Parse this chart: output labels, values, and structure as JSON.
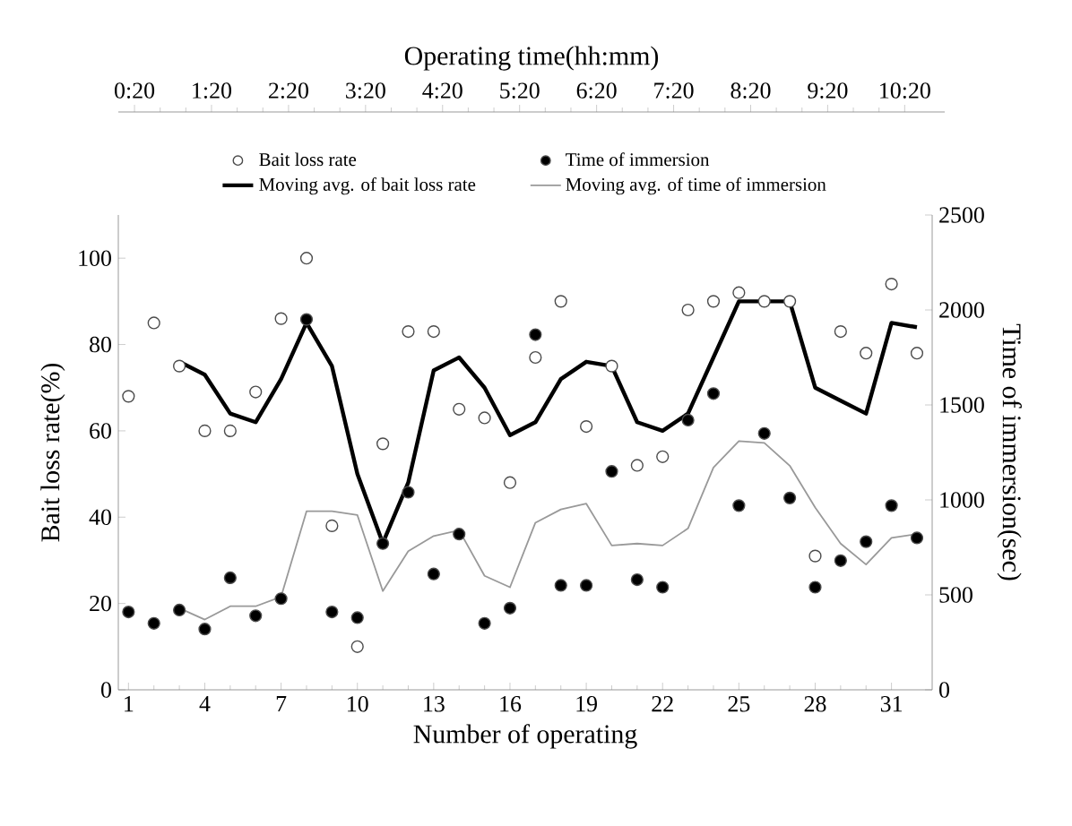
{
  "chart_data": {
    "type": "scatter",
    "x2label": "Operating time(hh:mm)",
    "xlabel": "Number of operating",
    "ylabel": "Bait loss rate(%)",
    "y2label": "Time of immersion(sec)",
    "xlim": [
      0.6,
      32.6
    ],
    "xticks": [
      1,
      4,
      7,
      10,
      13,
      16,
      19,
      22,
      25,
      28,
      31
    ],
    "ylim": [
      0,
      110
    ],
    "yticks": [
      0,
      20,
      40,
      60,
      80,
      100
    ],
    "y2lim": [
      0,
      2500
    ],
    "y2ticks": [
      0,
      500,
      1000,
      1500,
      2000,
      2500
    ],
    "x2lim": [
      0.12,
      10.85
    ],
    "x2ticks": [
      {
        "value": 0.33,
        "label": "0:20"
      },
      {
        "value": 1.33,
        "label": "1:20"
      },
      {
        "value": 2.33,
        "label": "2:20"
      },
      {
        "value": 3.33,
        "label": "3:20"
      },
      {
        "value": 4.33,
        "label": "4:20"
      },
      {
        "value": 5.33,
        "label": "5:20"
      },
      {
        "value": 6.33,
        "label": "6:20"
      },
      {
        "value": 7.33,
        "label": "7:20"
      },
      {
        "value": 8.33,
        "label": "8:20"
      },
      {
        "value": 9.33,
        "label": "9:20"
      },
      {
        "value": 10.33,
        "label": "10:20"
      }
    ],
    "legend": "top",
    "grid": false,
    "series": [
      {
        "name": "Bait loss rate",
        "marker": "circle",
        "color": "#ffffff",
        "x": [
          1,
          2,
          3,
          4,
          5,
          6,
          7,
          8,
          9,
          10,
          11,
          12,
          13,
          14,
          15,
          16,
          17,
          18,
          19,
          20,
          21,
          22,
          23,
          24,
          25,
          26,
          27,
          28,
          29,
          30,
          31,
          32
        ],
        "values": [
          68,
          85,
          75,
          60,
          60,
          69,
          86,
          100,
          38,
          10,
          57,
          83,
          83,
          65,
          63,
          48,
          77,
          90,
          61,
          75,
          52,
          54,
          88,
          90,
          92,
          90,
          90,
          31,
          83,
          78,
          94,
          78
        ]
      },
      {
        "name": "Time of immersion",
        "marker": "circle",
        "color": "#000000",
        "axis": "y2",
        "x": [
          1,
          2,
          3,
          4,
          5,
          6,
          7,
          8,
          9,
          10,
          11,
          12,
          13,
          14,
          15,
          16,
          17,
          18,
          19,
          20,
          21,
          22,
          23,
          24,
          25,
          26,
          27,
          28,
          29,
          30,
          31,
          32
        ],
        "values": [
          410,
          350,
          420,
          320,
          590,
          390,
          480,
          1950,
          410,
          380,
          770,
          1040,
          610,
          820,
          350,
          430,
          1870,
          550,
          550,
          1150,
          580,
          540,
          1420,
          1560,
          970,
          1350,
          1010,
          540,
          680,
          780,
          970,
          800
        ]
      },
      {
        "name": "Moving avg. of bait loss rate",
        "type": "line",
        "marker": "none",
        "color": "#000000",
        "x": [
          3,
          4,
          5,
          6,
          7,
          8,
          9,
          10,
          11,
          12,
          13,
          14,
          15,
          16,
          17,
          18,
          19,
          20,
          21,
          22,
          23,
          24,
          25,
          26,
          27,
          28,
          29,
          30,
          31,
          32
        ],
        "values": [
          76,
          73,
          64,
          62,
          72,
          85,
          75,
          50,
          34,
          48,
          74,
          77,
          70,
          59,
          62,
          72,
          76,
          75,
          62,
          60,
          64,
          77,
          90,
          90,
          90,
          70,
          67,
          64,
          85,
          84
        ]
      },
      {
        "name": "Moving avg. of time of immersion",
        "type": "line",
        "marker": "none",
        "color": "#999999",
        "axis": "y2",
        "x": [
          3,
          4,
          5,
          6,
          7,
          8,
          9,
          10,
          11,
          12,
          13,
          14,
          15,
          16,
          17,
          18,
          19,
          20,
          21,
          22,
          23,
          24,
          25,
          26,
          27,
          28,
          29,
          30,
          31,
          32
        ],
        "values": [
          430,
          370,
          440,
          440,
          490,
          940,
          940,
          920,
          520,
          730,
          810,
          840,
          600,
          540,
          880,
          950,
          980,
          760,
          770,
          760,
          850,
          1170,
          1310,
          1300,
          1180,
          960,
          770,
          660,
          800,
          820
        ]
      }
    ]
  }
}
